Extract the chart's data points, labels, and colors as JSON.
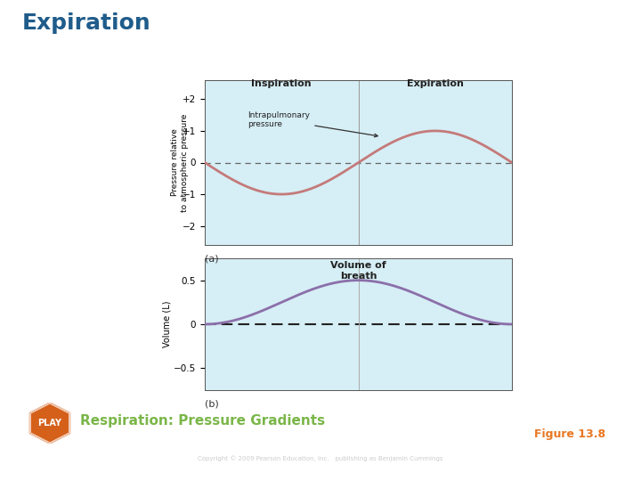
{
  "title": "Expiration",
  "title_color": "#1f5c8b",
  "title_fontsize": 18,
  "bg_color": "#ffffff",
  "plot_bg_color": "#d6eef5",
  "top_line_color": "#7ab648",
  "bottom_stripe_colors": [
    "#1a5276",
    "#e87722",
    "#7ab648"
  ],
  "subplot_a_ylabel": "Pressure relative\nto atmospheric pressure",
  "subplot_a_yticks": [
    -2,
    -1,
    0,
    1,
    2
  ],
  "subplot_a_yticklabels": [
    "−2",
    "−1",
    "0",
    "+1",
    "+2"
  ],
  "subplot_a_ylim": [
    -2.6,
    2.6
  ],
  "subplot_a_insp_label": "Inspiration",
  "subplot_a_exp_label": "Expiration",
  "subplot_a_curve_label": "Intrapulmonary\npressure",
  "subplot_a_label": "(a)",
  "subplot_b_ylabel": "Volume (L)",
  "subplot_b_yticks": [
    -0.5,
    0,
    0.5
  ],
  "subplot_b_yticklabels": [
    "−0.5",
    "0",
    "0.5"
  ],
  "subplot_b_ylim": [
    -0.75,
    0.75
  ],
  "subplot_b_title": "Volume of\nbreath",
  "subplot_b_label": "(b)",
  "pressure_curve_color": "#c47a7a",
  "volume_curve_color": "#8b6faa",
  "dashed_line_color": "#666666",
  "play_bg_color": "#d4601a",
  "play_text": "PLAY",
  "play_label": "Respiration: Pressure Gradients",
  "play_label_color": "#7ab648",
  "figure_label": "Figure 13.8",
  "figure_label_color": "#e87722",
  "copyright_text": "Copyright © 2009 Pearson Education, Inc.   publishing as Benjamin Cummings",
  "copyright_color": "#888888"
}
